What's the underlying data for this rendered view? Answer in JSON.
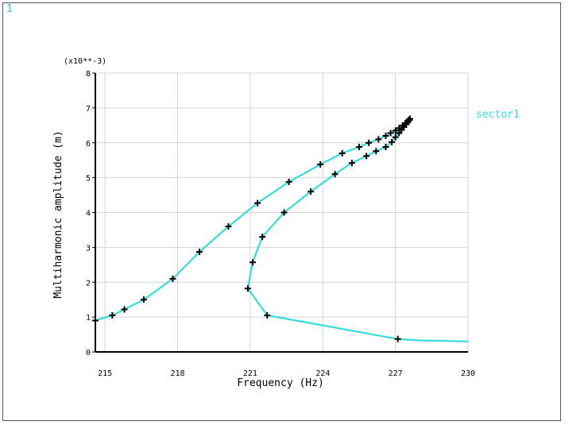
{
  "window_number": "1",
  "chart_data": {
    "type": "line",
    "xlabel": "Frequency (Hz)",
    "ylabel": "Multiharmonic amplitude (m)",
    "y_multiplier_label": "(x10**-3)",
    "xlim": [
      214.6,
      230
    ],
    "ylim": [
      0,
      8
    ],
    "x_ticks": [
      215,
      218,
      221,
      224,
      227,
      230
    ],
    "y_ticks": [
      0,
      1,
      2,
      3,
      4,
      5,
      6,
      7,
      8
    ],
    "grid": true,
    "legend_position": "right",
    "series": [
      {
        "name": "sector1",
        "color": "#33dddd",
        "marker_color": "#000000",
        "x": [
          214.6,
          215.3,
          215.8,
          216.6,
          217.8,
          218.9,
          220.1,
          221.3,
          222.6,
          223.9,
          224.8,
          225.5,
          225.9,
          226.3,
          226.6,
          226.8,
          227.0,
          227.15,
          227.3,
          227.4,
          227.5,
          227.55,
          227.6,
          227.58,
          227.52,
          227.45,
          227.35,
          227.25,
          227.15,
          227.0,
          226.85,
          226.6,
          226.2,
          225.8,
          225.2,
          224.5,
          223.5,
          222.4,
          221.5,
          221.1,
          220.9,
          221.7,
          227.1,
          228.0,
          230.0
        ],
        "y": [
          0.9,
          1.05,
          1.22,
          1.5,
          2.1,
          2.87,
          3.6,
          4.27,
          4.88,
          5.38,
          5.7,
          5.88,
          6.0,
          6.1,
          6.2,
          6.28,
          6.35,
          6.42,
          6.5,
          6.56,
          6.62,
          6.66,
          6.69,
          6.65,
          6.6,
          6.53,
          6.45,
          6.37,
          6.28,
          6.16,
          6.02,
          5.88,
          5.76,
          5.62,
          5.42,
          5.1,
          4.6,
          4.0,
          3.3,
          2.57,
          1.82,
          1.05,
          0.37,
          0.33,
          0.3
        ],
        "marker_indices": [
          0,
          1,
          2,
          3,
          4,
          5,
          6,
          7,
          8,
          9,
          10,
          11,
          12,
          13,
          14,
          15,
          16,
          17,
          18,
          19,
          20,
          21,
          22,
          23,
          24,
          25,
          26,
          27,
          28,
          29,
          30,
          31,
          32,
          33,
          34,
          35,
          36,
          37,
          38,
          39,
          40,
          41,
          42
        ]
      }
    ]
  }
}
